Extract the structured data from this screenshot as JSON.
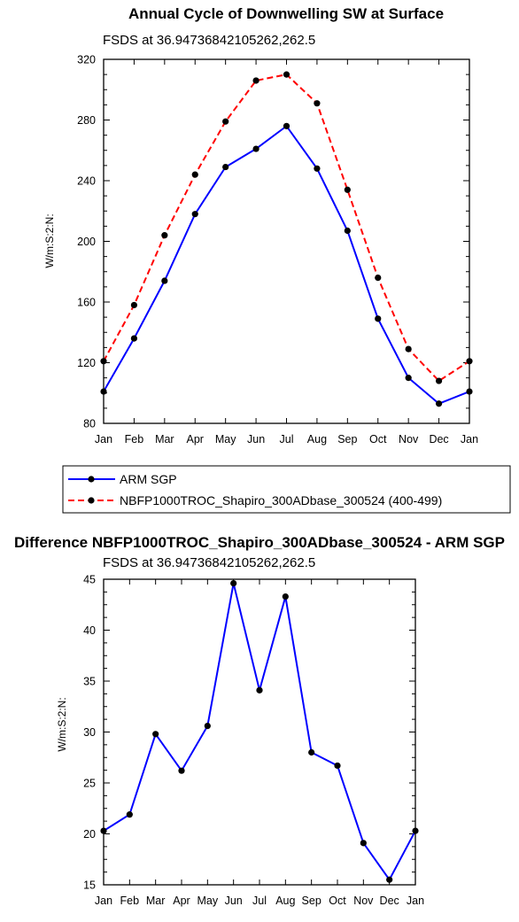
{
  "chart_data": [
    {
      "type": "line",
      "title": "Annual Cycle of Downwelling SW at Surface",
      "subtitle": "FSDS at 36.94736842105262,262.5",
      "ylabel": "W/m:S:2:N:",
      "xlabel": "",
      "categories": [
        "Jan",
        "Feb",
        "Mar",
        "Apr",
        "May",
        "Jun",
        "Jul",
        "Aug",
        "Sep",
        "Oct",
        "Nov",
        "Dec",
        "Jan"
      ],
      "ylim": [
        80,
        320
      ],
      "yticks": [
        80,
        120,
        160,
        200,
        240,
        280,
        320
      ],
      "grid": false,
      "legend_position": "bottom",
      "series": [
        {
          "name": "ARM SGP",
          "color": "#0000ff",
          "dash": "solid",
          "values": [
            101,
            136,
            174,
            218,
            249,
            261,
            276,
            248,
            207,
            149,
            110,
            93,
            101
          ]
        },
        {
          "name": "NBFP1000TROC_Shapiro_300ADbase_300524 (400-499)",
          "color": "#ff0000",
          "dash": "dashed",
          "values": [
            121,
            158,
            204,
            244,
            279,
            306,
            310,
            291,
            234,
            176,
            129,
            108,
            121
          ]
        }
      ]
    },
    {
      "type": "line",
      "title": "Difference NBFP1000TROC_Shapiro_300ADbase_300524 - ARM SGP",
      "subtitle": "FSDS at 36.94736842105262,262.5",
      "ylabel": "W/m:S:2:N:",
      "xlabel": "",
      "categories": [
        "Jan",
        "Feb",
        "Mar",
        "Apr",
        "May",
        "Jun",
        "Jul",
        "Aug",
        "Sep",
        "Oct",
        "Nov",
        "Dec",
        "Jan"
      ],
      "ylim": [
        15,
        45
      ],
      "yticks": [
        15,
        20,
        25,
        30,
        35,
        40,
        45
      ],
      "grid": false,
      "series": [
        {
          "color": "#0000ff",
          "dash": "solid",
          "values": [
            20.3,
            21.9,
            29.8,
            26.2,
            30.6,
            44.6,
            34.1,
            43.3,
            28.0,
            26.7,
            19.1,
            15.5,
            20.3
          ]
        }
      ]
    }
  ]
}
